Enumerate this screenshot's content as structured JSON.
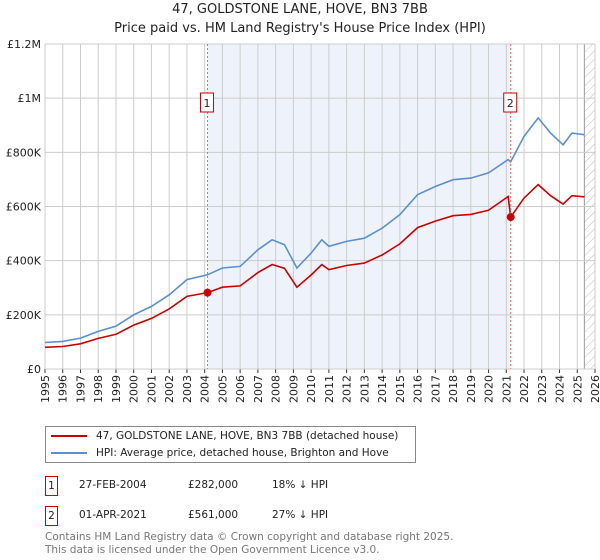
{
  "chart_data": {
    "type": "line",
    "title": "47, GOLDSTONE LANE, HOVE, BN3 7BB",
    "subtitle": "Price paid vs. HM Land Registry's House Price Index (HPI)",
    "xlim": [
      1995,
      2026
    ],
    "ylim": [
      0,
      1200000
    ],
    "x_ticks": [
      "1995",
      "1996",
      "1997",
      "1998",
      "1999",
      "2000",
      "2001",
      "2002",
      "2003",
      "2004",
      "2005",
      "2006",
      "2007",
      "2008",
      "2009",
      "2010",
      "2011",
      "2012",
      "2013",
      "2014",
      "2015",
      "2016",
      "2017",
      "2018",
      "2019",
      "2020",
      "2021",
      "2022",
      "2023",
      "2024",
      "2025",
      "2026"
    ],
    "y_ticks": [
      {
        "v": 0,
        "label": "£0"
      },
      {
        "v": 200000,
        "label": "£200K"
      },
      {
        "v": 400000,
        "label": "£400K"
      },
      {
        "v": 600000,
        "label": "£600K"
      },
      {
        "v": 800000,
        "label": "£800K"
      },
      {
        "v": 1000000,
        "label": "£1M"
      },
      {
        "v": 1200000,
        "label": "£1.2M"
      }
    ],
    "grid": true,
    "colors": {
      "property": "#cc0000",
      "hpi": "#5b8fd0",
      "shade": "#eef3fb"
    },
    "series": [
      {
        "name": "47, GOLDSTONE LANE, HOVE, BN3 7BB (detached house)",
        "key": "property",
        "x": [
          1995,
          1996,
          1997,
          1998,
          1999,
          2000,
          2001,
          2002,
          2003,
          2004.16,
          2005,
          2006,
          2007,
          2007.8,
          2008.5,
          2009.2,
          2010,
          2010.6,
          2011,
          2012,
          2013,
          2014,
          2015,
          2016,
          2017,
          2018,
          2019,
          2020,
          2021.1,
          2021.25,
          2022,
          2022.8,
          2023.5,
          2024.2,
          2024.7,
          2025.4
        ],
        "values": [
          80000,
          83000,
          93000,
          113000,
          128000,
          162000,
          187000,
          222000,
          268000,
          282000,
          302000,
          307000,
          356000,
          386000,
          372000,
          302000,
          347000,
          386000,
          367000,
          382000,
          391000,
          421000,
          462000,
          522000,
          546000,
          566000,
          571000,
          586000,
          637000,
          561000,
          631000,
          681000,
          640000,
          609000,
          640000,
          636000
        ]
      },
      {
        "name": "HPI: Average price, detached house, Brighton and Hove",
        "key": "hpi",
        "x": [
          1995,
          1996,
          1997,
          1998,
          1999,
          2000,
          2001,
          2002,
          2003,
          2004.16,
          2005,
          2006,
          2007,
          2007.8,
          2008.5,
          2009.2,
          2010,
          2010.6,
          2011,
          2012,
          2013,
          2014,
          2015,
          2016,
          2017,
          2018,
          2019,
          2020,
          2021.1,
          2021.25,
          2022,
          2022.8,
          2023.5,
          2024.2,
          2024.7,
          2025.4
        ],
        "values": [
          98000,
          102000,
          114000,
          139000,
          158000,
          200000,
          231000,
          274000,
          330000,
          348000,
          373000,
          379000,
          440000,
          477000,
          459000,
          373000,
          428000,
          477000,
          453000,
          471000,
          483000,
          520000,
          570000,
          644000,
          674000,
          699000,
          705000,
          724000,
          773000,
          765000,
          859000,
          927000,
          871000,
          828000,
          871000,
          865000
        ]
      }
    ],
    "annotations": [
      {
        "label": "1",
        "x": 2004.16,
        "value": 282000
      },
      {
        "label": "2",
        "x": 2021.25,
        "value": 561000
      }
    ],
    "shaded_range": [
      2004.16,
      2021.25
    ],
    "hatched_from": 2025.4,
    "legend_position": "bottom"
  },
  "legend": {
    "property": "47, GOLDSTONE LANE, HOVE, BN3 7BB (detached house)",
    "hpi": "HPI: Average price, detached house, Brighton and Hove"
  },
  "transactions": [
    {
      "num": "1",
      "date": "27-FEB-2004",
      "price": "£282,000",
      "delta": "18% ↓ HPI"
    },
    {
      "num": "2",
      "date": "01-APR-2021",
      "price": "£561,000",
      "delta": "27% ↓ HPI"
    }
  ],
  "footer": {
    "line1": "Contains HM Land Registry data © Crown copyright and database right 2025.",
    "line2": "This data is licensed under the Open Government Licence v3.0."
  }
}
